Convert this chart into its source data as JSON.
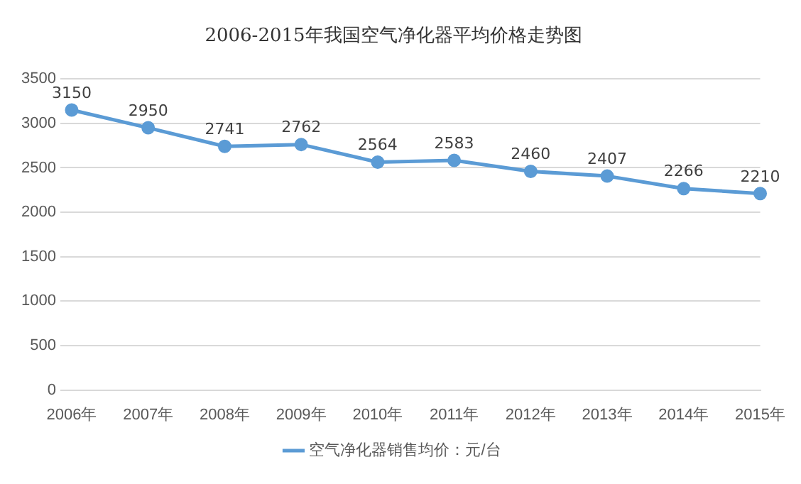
{
  "chart_data": {
    "type": "line",
    "title": "2006-2015年我国空气净化器平均价格走势图",
    "categories": [
      "2006年",
      "2007年",
      "2008年",
      "2009年",
      "2010年",
      "2011年",
      "2012年",
      "2013年",
      "2014年",
      "2015年"
    ],
    "series": [
      {
        "name": "空气净化器销售均价：元/台",
        "color": "#5b9bd5",
        "values": [
          3150,
          2950,
          2741,
          2762,
          2564,
          2583,
          2460,
          2407,
          2266,
          2210
        ]
      }
    ],
    "ylim": [
      0,
      3500
    ],
    "yticks": [
      0,
      500,
      1000,
      1500,
      2000,
      2500,
      3000,
      3500
    ],
    "grid": "y",
    "legend": "bottom",
    "marker": "circle",
    "line_style": "solid",
    "data_labels": true
  }
}
